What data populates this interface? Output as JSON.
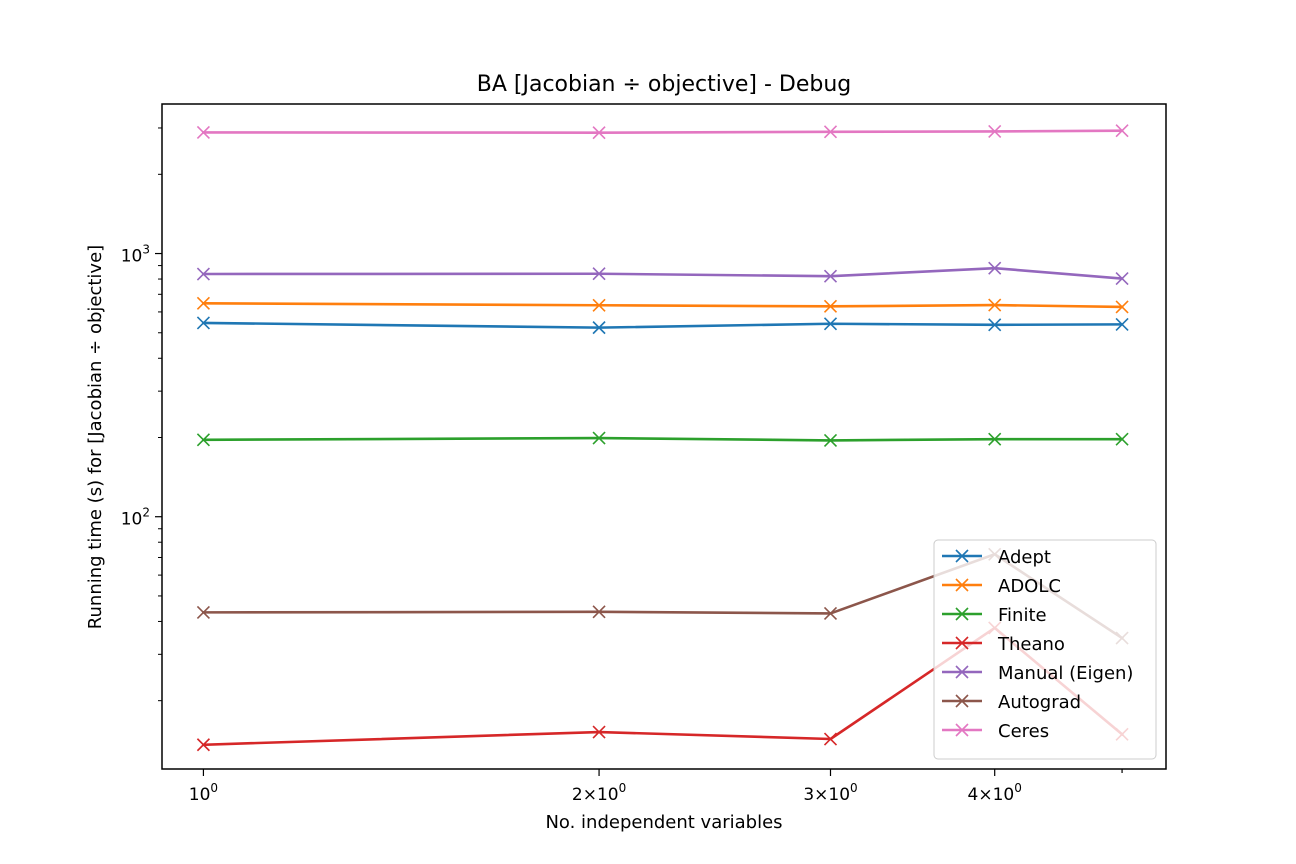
{
  "chart_data": {
    "type": "line",
    "title": "BA [Jacobian ÷ objective] - Debug",
    "xlabel": "No. independent variables",
    "ylabel": "Running time (s) for [Jacobian ÷ objective]",
    "xscale": "log",
    "yscale": "log",
    "xlim": [
      0.93,
      5.4
    ],
    "ylim": [
      11.0,
      3700
    ],
    "x": [
      1,
      2,
      3,
      4,
      5
    ],
    "x_tick_labels": [
      {
        "value": 1,
        "base": "10",
        "exp": "0"
      },
      {
        "value": 2,
        "base": "2×10",
        "exp": "0"
      },
      {
        "value": 3,
        "base": "3×10",
        "exp": "0"
      },
      {
        "value": 4,
        "base": "4×10",
        "exp": "0"
      },
      {
        "value": 5,
        "base": "",
        "exp": ""
      }
    ],
    "y_tick_labels": [
      {
        "value": 100,
        "base": "10",
        "exp": "2"
      },
      {
        "value": 1000,
        "base": "10",
        "exp": "3"
      }
    ],
    "y_minor_ticks": [
      20,
      30,
      40,
      50,
      60,
      70,
      80,
      90,
      200,
      300,
      400,
      500,
      600,
      700,
      800,
      900,
      2000,
      3000
    ],
    "marker": "x",
    "grid": false,
    "legend_position": "lower-right",
    "series": [
      {
        "name": "Adept",
        "color": "#1f77b4",
        "values": [
          545,
          523,
          541,
          536,
          538
        ]
      },
      {
        "name": "ADOLC",
        "color": "#ff7f0e",
        "values": [
          647,
          636,
          630,
          637,
          627
        ]
      },
      {
        "name": "Finite",
        "color": "#2ca02c",
        "values": [
          196,
          199,
          195,
          197,
          197
        ]
      },
      {
        "name": "Theano",
        "color": "#d62728",
        "values": [
          13.6,
          15.2,
          14.3,
          37.8,
          14.9
        ]
      },
      {
        "name": "Manual (Eigen)",
        "color": "#9467bd",
        "values": [
          836,
          838,
          820,
          880,
          803
        ]
      },
      {
        "name": "Autograd",
        "color": "#8c564b",
        "values": [
          43.3,
          43.5,
          42.9,
          72.0,
          34.6
        ]
      },
      {
        "name": "Ceres",
        "color": "#e377c2",
        "values": [
          2885,
          2880,
          2900,
          2910,
          2930
        ]
      }
    ]
  }
}
